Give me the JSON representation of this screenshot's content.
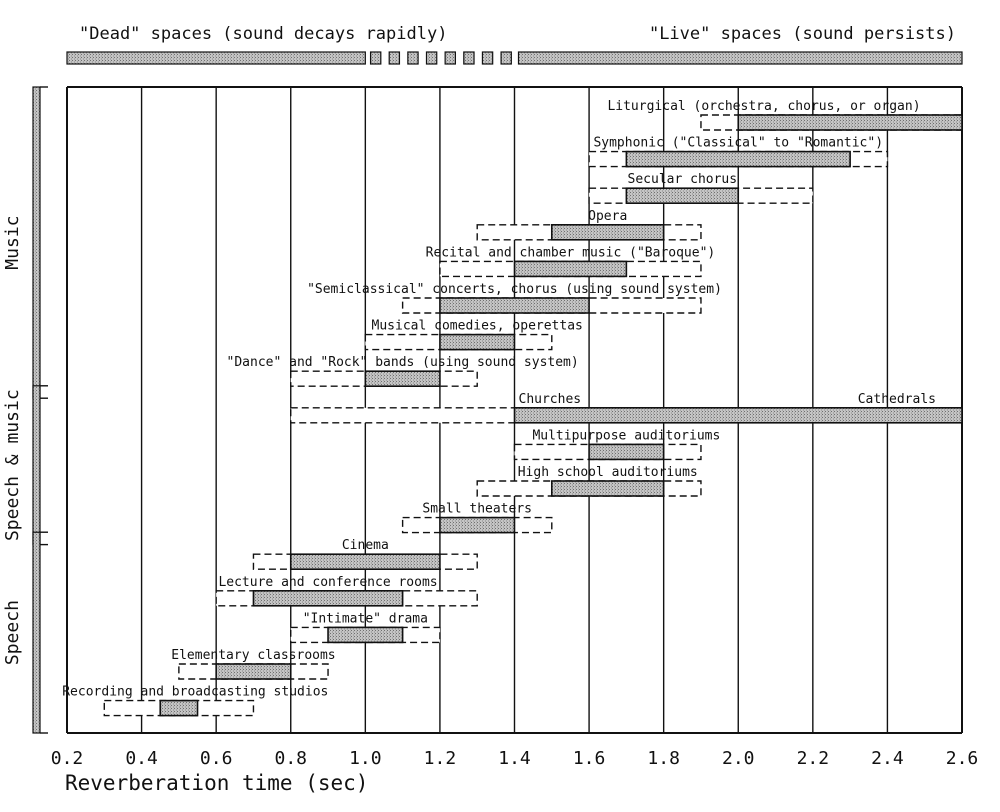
{
  "chart_data": {
    "type": "bar",
    "subtype": "range",
    "title": "",
    "xlabel": "Reverberation time (sec)",
    "ylabel": "",
    "xlim": [
      0.2,
      2.6
    ],
    "xticks": [
      "0.2",
      "0.4",
      "0.6",
      "0.8",
      "1.0",
      "1.2",
      "1.4",
      "1.6",
      "1.8",
      "2.0",
      "2.2",
      "2.4",
      "2.6"
    ],
    "grid": true,
    "top_scale": {
      "dead_label": "\"Dead\" spaces (sound decays rapidly)",
      "live_label": "\"Live\" spaces (sound persists)",
      "dead_range": [
        0.2,
        1.0
      ],
      "transition_range": [
        1.0,
        1.4
      ],
      "live_range": [
        1.4,
        2.6
      ]
    },
    "groups": [
      {
        "name": "Music",
        "from": "Liturgical (orchestra, chorus, or organ)",
        "to": "\"Dance\" and \"Rock\" bands (using sound system)"
      },
      {
        "name": "Speech & music",
        "from": "Churches",
        "to": "Small theaters"
      },
      {
        "name": "Speech",
        "from": "Cinema",
        "to": "Recording and broadcasting studios"
      }
    ],
    "series": [
      {
        "label": "Liturgical (orchestra, chorus, or organ)",
        "range": [
          1.9,
          2.6
        ],
        "optimum": [
          2.0,
          2.6
        ]
      },
      {
        "label": "Symphonic (\"Classical\" to \"Romantic\")",
        "range": [
          1.6,
          2.4
        ],
        "optimum": [
          1.7,
          2.3
        ]
      },
      {
        "label": "Secular chorus",
        "range": [
          1.6,
          2.2
        ],
        "optimum": [
          1.7,
          2.0
        ]
      },
      {
        "label": "Opera",
        "range": [
          1.3,
          1.9
        ],
        "optimum": [
          1.5,
          1.8
        ]
      },
      {
        "label": "Recital and chamber music (\"Baroque\")",
        "range": [
          1.2,
          1.9
        ],
        "optimum": [
          1.4,
          1.7
        ]
      },
      {
        "label": "\"Semiclassical\" concerts, chorus (using sound system)",
        "range": [
          1.1,
          1.9
        ],
        "optimum": [
          1.2,
          1.6
        ]
      },
      {
        "label": "Musical comedies, operettas",
        "range": [
          1.0,
          1.5
        ],
        "optimum": [
          1.2,
          1.4
        ]
      },
      {
        "label": "\"Dance\" and \"Rock\" bands (using sound system)",
        "range": [
          0.8,
          1.3
        ],
        "optimum": [
          1.0,
          1.2
        ]
      },
      {
        "label": "Churches",
        "label_right": "Cathedrals",
        "range": [
          0.8,
          2.6
        ],
        "optimum": [
          1.4,
          2.6
        ]
      },
      {
        "label": "Multipurpose auditoriums",
        "range": [
          1.4,
          1.9
        ],
        "optimum": [
          1.6,
          1.8
        ]
      },
      {
        "label": "High school auditoriums",
        "range": [
          1.3,
          1.9
        ],
        "optimum": [
          1.5,
          1.8
        ]
      },
      {
        "label": "Small theaters",
        "range": [
          1.1,
          1.5
        ],
        "optimum": [
          1.2,
          1.4
        ]
      },
      {
        "label": "Cinema",
        "range": [
          0.7,
          1.3
        ],
        "optimum": [
          0.8,
          1.2
        ]
      },
      {
        "label": "Lecture and conference rooms",
        "range": [
          0.6,
          1.3
        ],
        "optimum": [
          0.7,
          1.1
        ]
      },
      {
        "label": "\"Intimate\" drama",
        "range": [
          0.8,
          1.2
        ],
        "optimum": [
          0.9,
          1.1
        ]
      },
      {
        "label": "Elementary classrooms",
        "range": [
          0.5,
          0.9
        ],
        "optimum": [
          0.6,
          0.8
        ]
      },
      {
        "label": "Recording and broadcasting studios",
        "range": [
          0.3,
          0.7
        ],
        "optimum": [
          0.45,
          0.55
        ]
      }
    ],
    "colors": {
      "ink": "#111111",
      "optimum_fill": "#b5b5b5",
      "scale_fill": "#9a9a9a",
      "background": "#ffffff"
    }
  }
}
